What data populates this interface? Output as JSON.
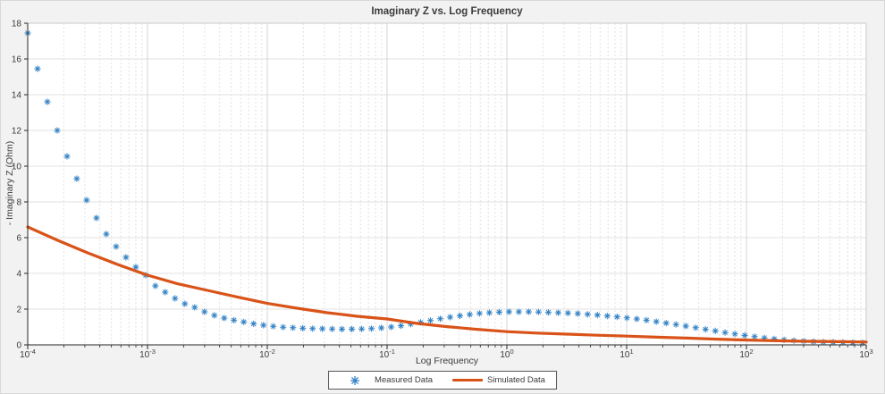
{
  "figure": {
    "title": "Imaginary Z vs. Log Frequency",
    "xlabel": "Log Frequency",
    "ylabel": "- Imaginary Z (Ohm)"
  },
  "chart_data": {
    "type": "scatter",
    "title": "Imaginary Z vs. Log Frequency",
    "xlabel": "Log Frequency",
    "ylabel": "- Imaginary Z (Ohm)",
    "x_scale": "log",
    "xlim_log": [
      -4,
      3
    ],
    "ylim": [
      0,
      18
    ],
    "y_ticks": [
      0,
      2,
      4,
      6,
      8,
      10,
      12,
      14,
      16,
      18
    ],
    "x_tick_exponents": [
      -4,
      -3,
      -2,
      -1,
      0,
      1,
      2,
      3
    ],
    "x_tick_labels": [
      "10^-4",
      "10^-3",
      "10^-2",
      "10^-1",
      "10^0",
      "10^1",
      "10^2",
      "10^3"
    ],
    "grid": true,
    "legend_position": "south-outside",
    "colors": {
      "measured": "#3382c4",
      "simulated": "#d95319",
      "axis": "#262626",
      "grid_major": "#d6d6d6",
      "grid_minor": "#dddddd",
      "grid_horizontal": "#e2e2e2",
      "box_light": "#c9c9c9",
      "figure_bg": "#f2f2f2",
      "plot_bg": "#ffffff"
    },
    "series": [
      {
        "name": "Measured Data",
        "type": "scatter",
        "marker": "asterisk",
        "color": "#3382c4",
        "log_x": [
          -4.0,
          -3.918,
          -3.836,
          -3.754,
          -3.672,
          -3.59,
          -3.508,
          -3.426,
          -3.344,
          -3.262,
          -3.18,
          -3.098,
          -3.016,
          -2.934,
          -2.852,
          -2.77,
          -2.688,
          -2.606,
          -2.524,
          -2.442,
          -2.36,
          -2.278,
          -2.196,
          -2.114,
          -2.032,
          -1.95,
          -1.868,
          -1.786,
          -1.704,
          -1.622,
          -1.54,
          -1.458,
          -1.376,
          -1.294,
          -1.212,
          -1.13,
          -1.048,
          -0.966,
          -0.884,
          -0.802,
          -0.72,
          -0.638,
          -0.556,
          -0.474,
          -0.392,
          -0.31,
          -0.228,
          -0.146,
          -0.064,
          0.018,
          0.1,
          0.182,
          0.264,
          0.346,
          0.428,
          0.51,
          0.592,
          0.674,
          0.756,
          0.838,
          0.92,
          1.002,
          1.084,
          1.166,
          1.248,
          1.33,
          1.412,
          1.494,
          1.576,
          1.658,
          1.74,
          1.822,
          1.904,
          1.986,
          2.068,
          2.15,
          2.232,
          2.314,
          2.396,
          2.478,
          2.56,
          2.642,
          2.724,
          2.806,
          2.888,
          2.97
        ],
        "y": [
          17.45,
          15.45,
          13.6,
          12.0,
          10.55,
          9.3,
          8.1,
          7.1,
          6.2,
          5.5,
          4.9,
          4.35,
          3.9,
          3.3,
          2.95,
          2.6,
          2.3,
          2.1,
          1.85,
          1.65,
          1.5,
          1.38,
          1.28,
          1.18,
          1.1,
          1.04,
          0.99,
          0.96,
          0.93,
          0.91,
          0.9,
          0.89,
          0.88,
          0.88,
          0.89,
          0.91,
          0.95,
          1.0,
          1.07,
          1.16,
          1.26,
          1.36,
          1.46,
          1.55,
          1.63,
          1.7,
          1.76,
          1.8,
          1.83,
          1.85,
          1.85,
          1.85,
          1.84,
          1.82,
          1.8,
          1.78,
          1.75,
          1.71,
          1.67,
          1.62,
          1.57,
          1.51,
          1.45,
          1.38,
          1.3,
          1.22,
          1.14,
          1.05,
          0.96,
          0.87,
          0.78,
          0.69,
          0.61,
          0.53,
          0.46,
          0.39,
          0.33,
          0.28,
          0.24,
          0.21,
          0.18,
          0.16,
          0.15,
          0.14,
          0.13,
          0.12
        ]
      },
      {
        "name": "Simulated Data",
        "type": "line",
        "color": "#d95319",
        "log_x": [
          -4.0,
          -3.75,
          -3.5,
          -3.25,
          -3.0,
          -2.75,
          -2.5,
          -2.25,
          -2.0,
          -1.75,
          -1.5,
          -1.25,
          -1.0,
          -0.75,
          -0.5,
          -0.25,
          0.0,
          0.25,
          0.5,
          0.75,
          1.0,
          1.25,
          1.5,
          1.75,
          2.0,
          2.25,
          2.5,
          2.75,
          3.0
        ],
        "y": [
          6.6,
          5.85,
          5.15,
          4.5,
          3.9,
          3.42,
          3.05,
          2.68,
          2.32,
          2.05,
          1.8,
          1.6,
          1.45,
          1.2,
          1.02,
          0.87,
          0.74,
          0.66,
          0.6,
          0.54,
          0.49,
          0.43,
          0.38,
          0.32,
          0.27,
          0.23,
          0.2,
          0.18,
          0.16
        ]
      }
    ]
  }
}
